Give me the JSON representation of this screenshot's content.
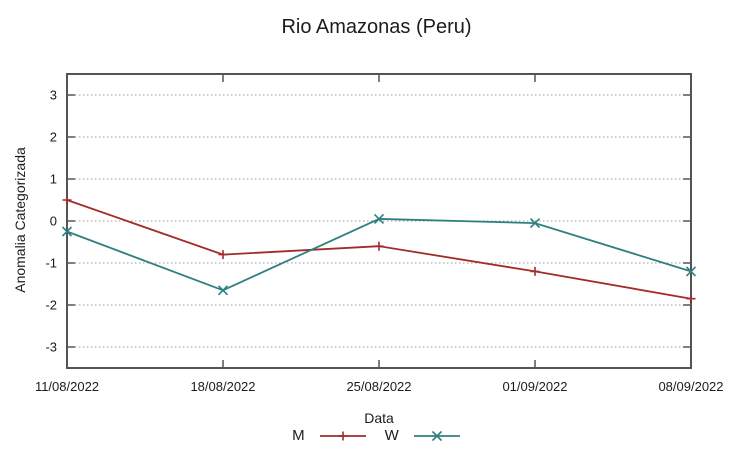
{
  "chart_data": {
    "type": "line",
    "title": "Rio Amazonas (Peru)",
    "xlabel": "Data",
    "ylabel": "Anomalia Categorizada",
    "categories": [
      "11/08/2022",
      "18/08/2022",
      "25/08/2022",
      "01/09/2022",
      "08/09/2022"
    ],
    "yticks": [
      -3,
      -2,
      -1,
      0,
      1,
      2,
      3
    ],
    "ylim": [
      -3.5,
      3.5
    ],
    "grid": "horizontal-dotted",
    "legend_position": "below-xlabel",
    "series": [
      {
        "name": "M",
        "marker": "plus",
        "color": "#a22c2c",
        "values": [
          0.5,
          -0.8,
          -0.6,
          -1.2,
          -1.85
        ]
      },
      {
        "name": "W",
        "marker": "cross",
        "color": "#2e8080",
        "values": [
          -0.25,
          -1.65,
          0.05,
          -0.05,
          -1.2
        ]
      }
    ]
  },
  "colors": {
    "background": "#ffffff",
    "border": "#545454",
    "gridline": "#9a9a9a",
    "text": "#1c1c1c",
    "series_m": "#a22c2c",
    "series_w": "#2e8080"
  }
}
